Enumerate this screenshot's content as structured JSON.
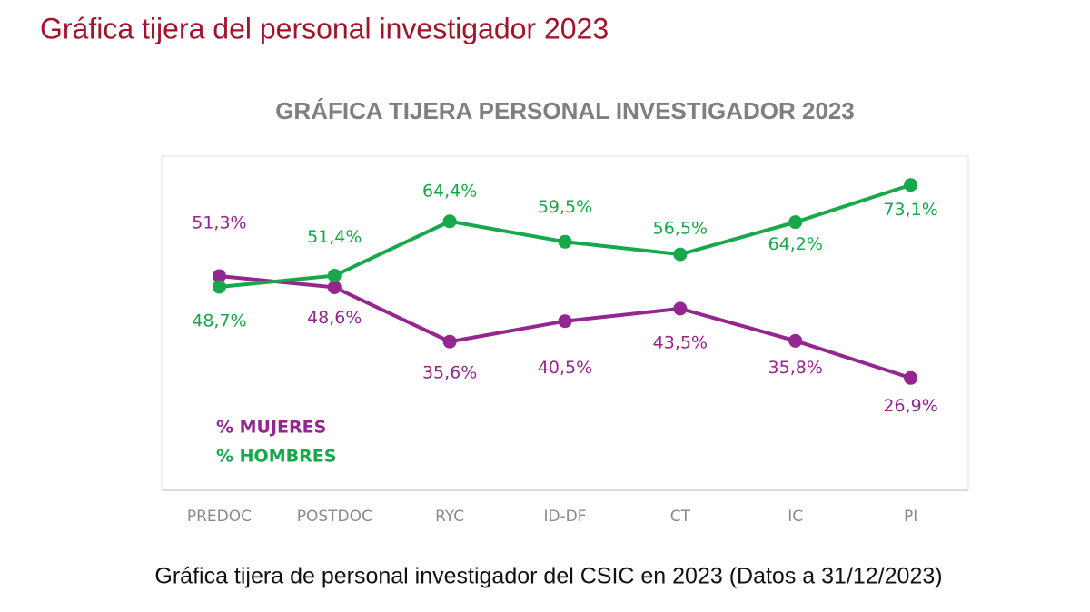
{
  "header": {
    "title": "Gráfica tijera del personal investigador 2023"
  },
  "chart_data": {
    "type": "line",
    "title": "GRÁFICA TIJERA PERSONAL INVESTIGADOR 2023",
    "categories": [
      "PREDOC",
      "POSTDOC",
      "RYC",
      "ID-DF",
      "CT",
      "IC",
      "PI"
    ],
    "series": [
      {
        "name": "% MUJERES",
        "color": "#93278f",
        "values": [
          51.3,
          48.6,
          35.6,
          40.5,
          43.5,
          35.8,
          26.9
        ],
        "value_labels": [
          "51,3%",
          "48,6%",
          "35,6%",
          "40,5%",
          "43,5%",
          "35,8%",
          "26,9%"
        ]
      },
      {
        "name": "% HOMBRES",
        "color": "#16a84a",
        "values": [
          48.7,
          51.4,
          64.4,
          59.5,
          56.5,
          64.2,
          73.1
        ],
        "value_labels": [
          "48,7%",
          "51,4%",
          "64,4%",
          "59,5%",
          "56,5%",
          "64,2%",
          "73,1%"
        ]
      }
    ],
    "ylim": [
      0,
      80
    ]
  },
  "caption": "Gráfica tijera de personal investigador del CSIC en 2023 (Datos a 31/12/2023)"
}
